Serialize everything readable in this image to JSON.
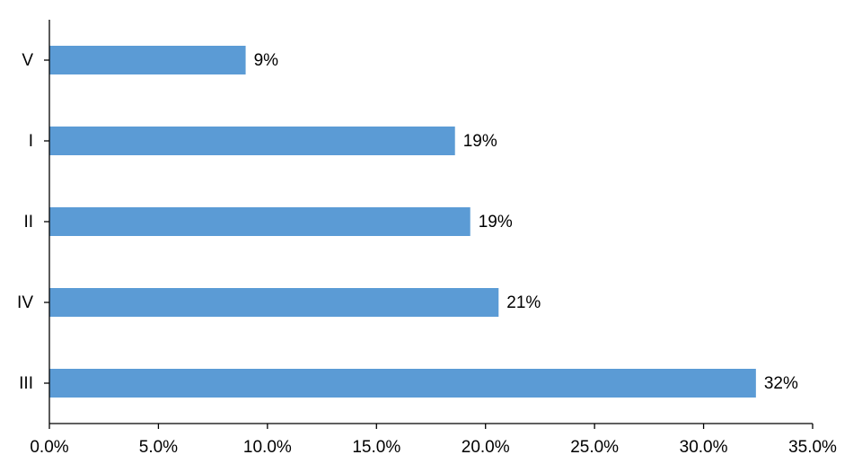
{
  "chart_data": {
    "type": "hbar",
    "categories": [
      "V",
      "I",
      "II",
      "IV",
      "III"
    ],
    "values": [
      9.0,
      18.6,
      19.3,
      20.6,
      32.4
    ],
    "value_labels": [
      "9%",
      "19%",
      "19%",
      "21%",
      "32%"
    ],
    "color": "#5b9bd5",
    "xlim": [
      0,
      35
    ],
    "xticks": [
      {
        "value": 0,
        "label": "0.0%"
      },
      {
        "value": 5,
        "label": "5.0%"
      },
      {
        "value": 10,
        "label": "10.0%"
      },
      {
        "value": 15,
        "label": "15.0%"
      },
      {
        "value": 20,
        "label": "20.0%"
      },
      {
        "value": 25,
        "label": "25.0%"
      },
      {
        "value": 30,
        "label": "30.0%"
      },
      {
        "value": 35,
        "label": "35.0%"
      }
    ],
    "grid": false
  }
}
